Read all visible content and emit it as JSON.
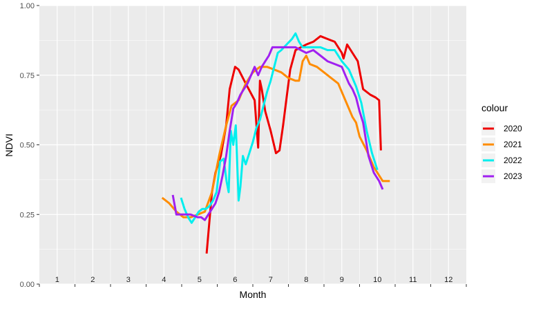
{
  "chart_data": {
    "type": "line",
    "xlabel": "Month",
    "ylabel": "NDVI",
    "xlim": [
      0.5,
      12.5
    ],
    "ylim": [
      0,
      1
    ],
    "x_tick_labels": [
      "1",
      "2",
      "3",
      "4",
      "5",
      "6",
      "7",
      "8",
      "9",
      "10",
      "11",
      "12"
    ],
    "y_ticks": [
      0,
      0.25,
      0.5,
      0.75,
      1
    ],
    "y_tick_labels": [
      "0.00",
      "0.25",
      "0.50",
      "0.75",
      "1.00"
    ],
    "grid": true,
    "legend": {
      "title": "colour",
      "position": "right"
    },
    "series": [
      {
        "name": "2020",
        "color": "#ee0000",
        "x": [
          5.2,
          5.35,
          5.45,
          5.6,
          5.75,
          5.85,
          6.0,
          6.1,
          6.3,
          6.55,
          6.65,
          6.7,
          6.75,
          6.85,
          7.0,
          7.15,
          7.25,
          7.35,
          7.45,
          7.55,
          7.7,
          7.85,
          8.0,
          8.2,
          8.4,
          8.6,
          8.8,
          9.0,
          9.05,
          9.15,
          9.3,
          9.45,
          9.6,
          9.8,
          9.95,
          10.05,
          10.1
        ],
        "y": [
          0.11,
          0.33,
          0.4,
          0.46,
          0.57,
          0.7,
          0.78,
          0.77,
          0.72,
          0.66,
          0.49,
          0.73,
          0.7,
          0.62,
          0.55,
          0.47,
          0.48,
          0.57,
          0.67,
          0.77,
          0.84,
          0.85,
          0.86,
          0.87,
          0.89,
          0.88,
          0.87,
          0.83,
          0.81,
          0.86,
          0.83,
          0.8,
          0.7,
          0.68,
          0.67,
          0.66,
          0.48
        ]
      },
      {
        "name": "2021",
        "color": "#ff8c00",
        "x": [
          3.95,
          4.15,
          4.35,
          4.55,
          4.75,
          4.95,
          5.15,
          5.35,
          5.55,
          5.75,
          5.9,
          6.1,
          6.3,
          6.5,
          6.7,
          6.9,
          7.1,
          7.3,
          7.5,
          7.7,
          7.8,
          7.9,
          8.0,
          8.1,
          8.3,
          8.5,
          8.7,
          8.9,
          9.1,
          9.3,
          9.4,
          9.5,
          9.7,
          9.9,
          10.05,
          10.15,
          10.25,
          10.35
        ],
        "y": [
          0.31,
          0.29,
          0.26,
          0.24,
          0.24,
          0.25,
          0.26,
          0.33,
          0.46,
          0.57,
          0.64,
          0.66,
          0.72,
          0.76,
          0.78,
          0.78,
          0.77,
          0.76,
          0.74,
          0.73,
          0.73,
          0.8,
          0.82,
          0.79,
          0.78,
          0.76,
          0.74,
          0.72,
          0.66,
          0.6,
          0.58,
          0.53,
          0.48,
          0.42,
          0.39,
          0.37,
          0.37,
          0.37
        ]
      },
      {
        "name": "2022",
        "color": "#00eeee",
        "x": [
          4.48,
          4.58,
          4.68,
          4.78,
          4.88,
          4.98,
          5.08,
          5.18,
          5.28,
          5.38,
          5.48,
          5.58,
          5.68,
          5.76,
          5.82,
          5.88,
          5.95,
          6.02,
          6.1,
          6.15,
          6.22,
          6.3,
          6.4,
          6.5,
          6.6,
          6.7,
          6.8,
          6.9,
          7.0,
          7.1,
          7.2,
          7.3,
          7.45,
          7.6,
          7.7,
          7.8,
          7.9,
          8.0,
          8.2,
          8.4,
          8.6,
          8.8,
          9.0,
          9.2,
          9.4,
          9.55,
          9.7,
          9.85,
          10.0
        ],
        "y": [
          0.31,
          0.27,
          0.24,
          0.22,
          0.24,
          0.26,
          0.27,
          0.27,
          0.28,
          0.3,
          0.33,
          0.44,
          0.45,
          0.37,
          0.33,
          0.55,
          0.5,
          0.57,
          0.3,
          0.35,
          0.46,
          0.43,
          0.47,
          0.51,
          0.56,
          0.59,
          0.64,
          0.69,
          0.73,
          0.78,
          0.83,
          0.84,
          0.86,
          0.88,
          0.9,
          0.87,
          0.85,
          0.85,
          0.85,
          0.85,
          0.84,
          0.84,
          0.8,
          0.77,
          0.71,
          0.65,
          0.55,
          0.47,
          0.41
        ]
      },
      {
        "name": "2023",
        "color": "#a020f0",
        "x": [
          4.25,
          4.35,
          4.55,
          4.75,
          4.95,
          5.05,
          5.15,
          5.25,
          5.35,
          5.45,
          5.55,
          5.65,
          5.75,
          5.85,
          5.95,
          6.05,
          6.15,
          6.25,
          6.35,
          6.45,
          6.55,
          6.65,
          6.75,
          6.85,
          6.95,
          7.05,
          7.15,
          7.3,
          7.5,
          7.7,
          7.85,
          8.0,
          8.2,
          8.4,
          8.6,
          8.8,
          9.0,
          9.1,
          9.2,
          9.3,
          9.4,
          9.5,
          9.6,
          9.75,
          9.9,
          10.05,
          10.15
        ],
        "y": [
          0.32,
          0.25,
          0.25,
          0.25,
          0.24,
          0.24,
          0.23,
          0.25,
          0.27,
          0.29,
          0.33,
          0.39,
          0.46,
          0.55,
          0.63,
          0.65,
          0.68,
          0.7,
          0.72,
          0.75,
          0.78,
          0.75,
          0.78,
          0.8,
          0.82,
          0.85,
          0.85,
          0.85,
          0.85,
          0.85,
          0.84,
          0.83,
          0.84,
          0.82,
          0.8,
          0.79,
          0.78,
          0.75,
          0.72,
          0.7,
          0.67,
          0.62,
          0.58,
          0.46,
          0.4,
          0.37,
          0.34
        ]
      }
    ]
  }
}
